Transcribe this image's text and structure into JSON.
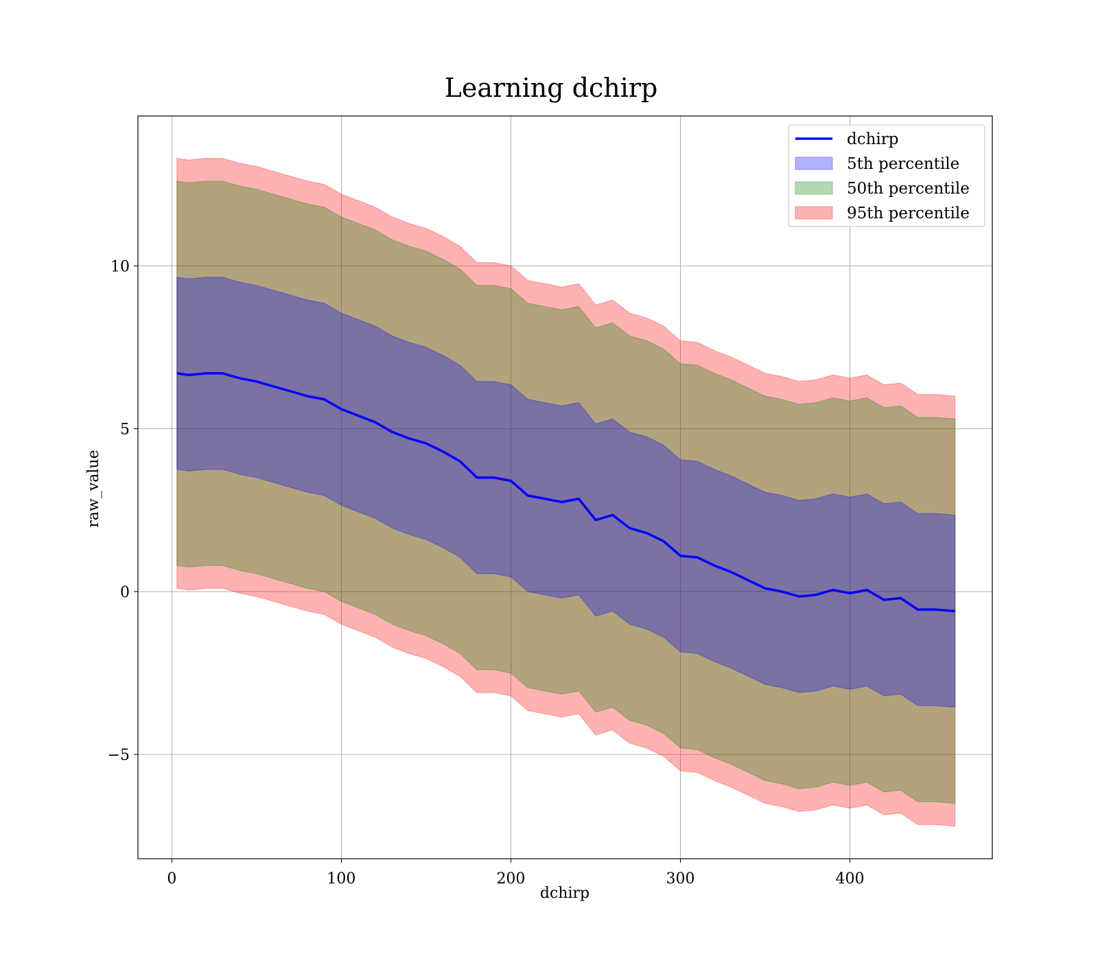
{
  "chart_data": {
    "type": "area",
    "title": "Learning dchirp",
    "xlabel": "dchirp",
    "ylabel": "raw_value",
    "xlim": [
      -20,
      484
    ],
    "ylim": [
      -8.2,
      14.6
    ],
    "xticks": [
      0,
      100,
      200,
      300,
      400
    ],
    "yticks": [
      -5,
      0,
      5,
      10
    ],
    "xtick_labels": [
      "0",
      "100",
      "200",
      "300",
      "400"
    ],
    "ytick_labels": [
      "−5",
      "0",
      "5",
      "10"
    ],
    "grid": true,
    "legend_position": "top-right",
    "legend": [
      {
        "label": "dchirp",
        "kind": "line",
        "color": "#0000ff"
      },
      {
        "label": "5th percentile",
        "kind": "patch",
        "color": "#0000ff"
      },
      {
        "label": "50th percentile",
        "kind": "patch",
        "color": "#008000"
      },
      {
        "label": "95th percentile",
        "kind": "patch",
        "color": "#ff0000"
      }
    ],
    "x": [
      3,
      10,
      20,
      30,
      40,
      50,
      60,
      70,
      80,
      90,
      100,
      110,
      120,
      130,
      140,
      150,
      160,
      170,
      180,
      190,
      200,
      210,
      220,
      230,
      240,
      250,
      260,
      270,
      280,
      290,
      300,
      310,
      320,
      330,
      340,
      350,
      360,
      370,
      380,
      390,
      400,
      410,
      420,
      430,
      440,
      450,
      462
    ],
    "mean": [
      6.7,
      6.65,
      6.7,
      6.7,
      6.55,
      6.45,
      6.3,
      6.15,
      6.0,
      5.9,
      5.6,
      5.4,
      5.2,
      4.9,
      4.7,
      4.55,
      4.3,
      4.0,
      3.5,
      3.5,
      3.4,
      2.95,
      2.85,
      2.75,
      2.85,
      2.2,
      2.35,
      1.95,
      1.8,
      1.55,
      1.1,
      1.05,
      0.8,
      0.6,
      0.35,
      0.1,
      0.0,
      -0.15,
      -0.1,
      0.05,
      -0.05,
      0.05,
      -0.25,
      -0.2,
      -0.55,
      -0.55,
      -0.6
    ],
    "series": [
      {
        "name": "5th percentile",
        "color": "#0000ff",
        "offset": 2.95
      },
      {
        "name": "50th percentile",
        "color": "#008000",
        "offset": 5.9
      },
      {
        "name": "95th percentile",
        "color": "#ff0000",
        "offset": 6.6
      }
    ]
  }
}
